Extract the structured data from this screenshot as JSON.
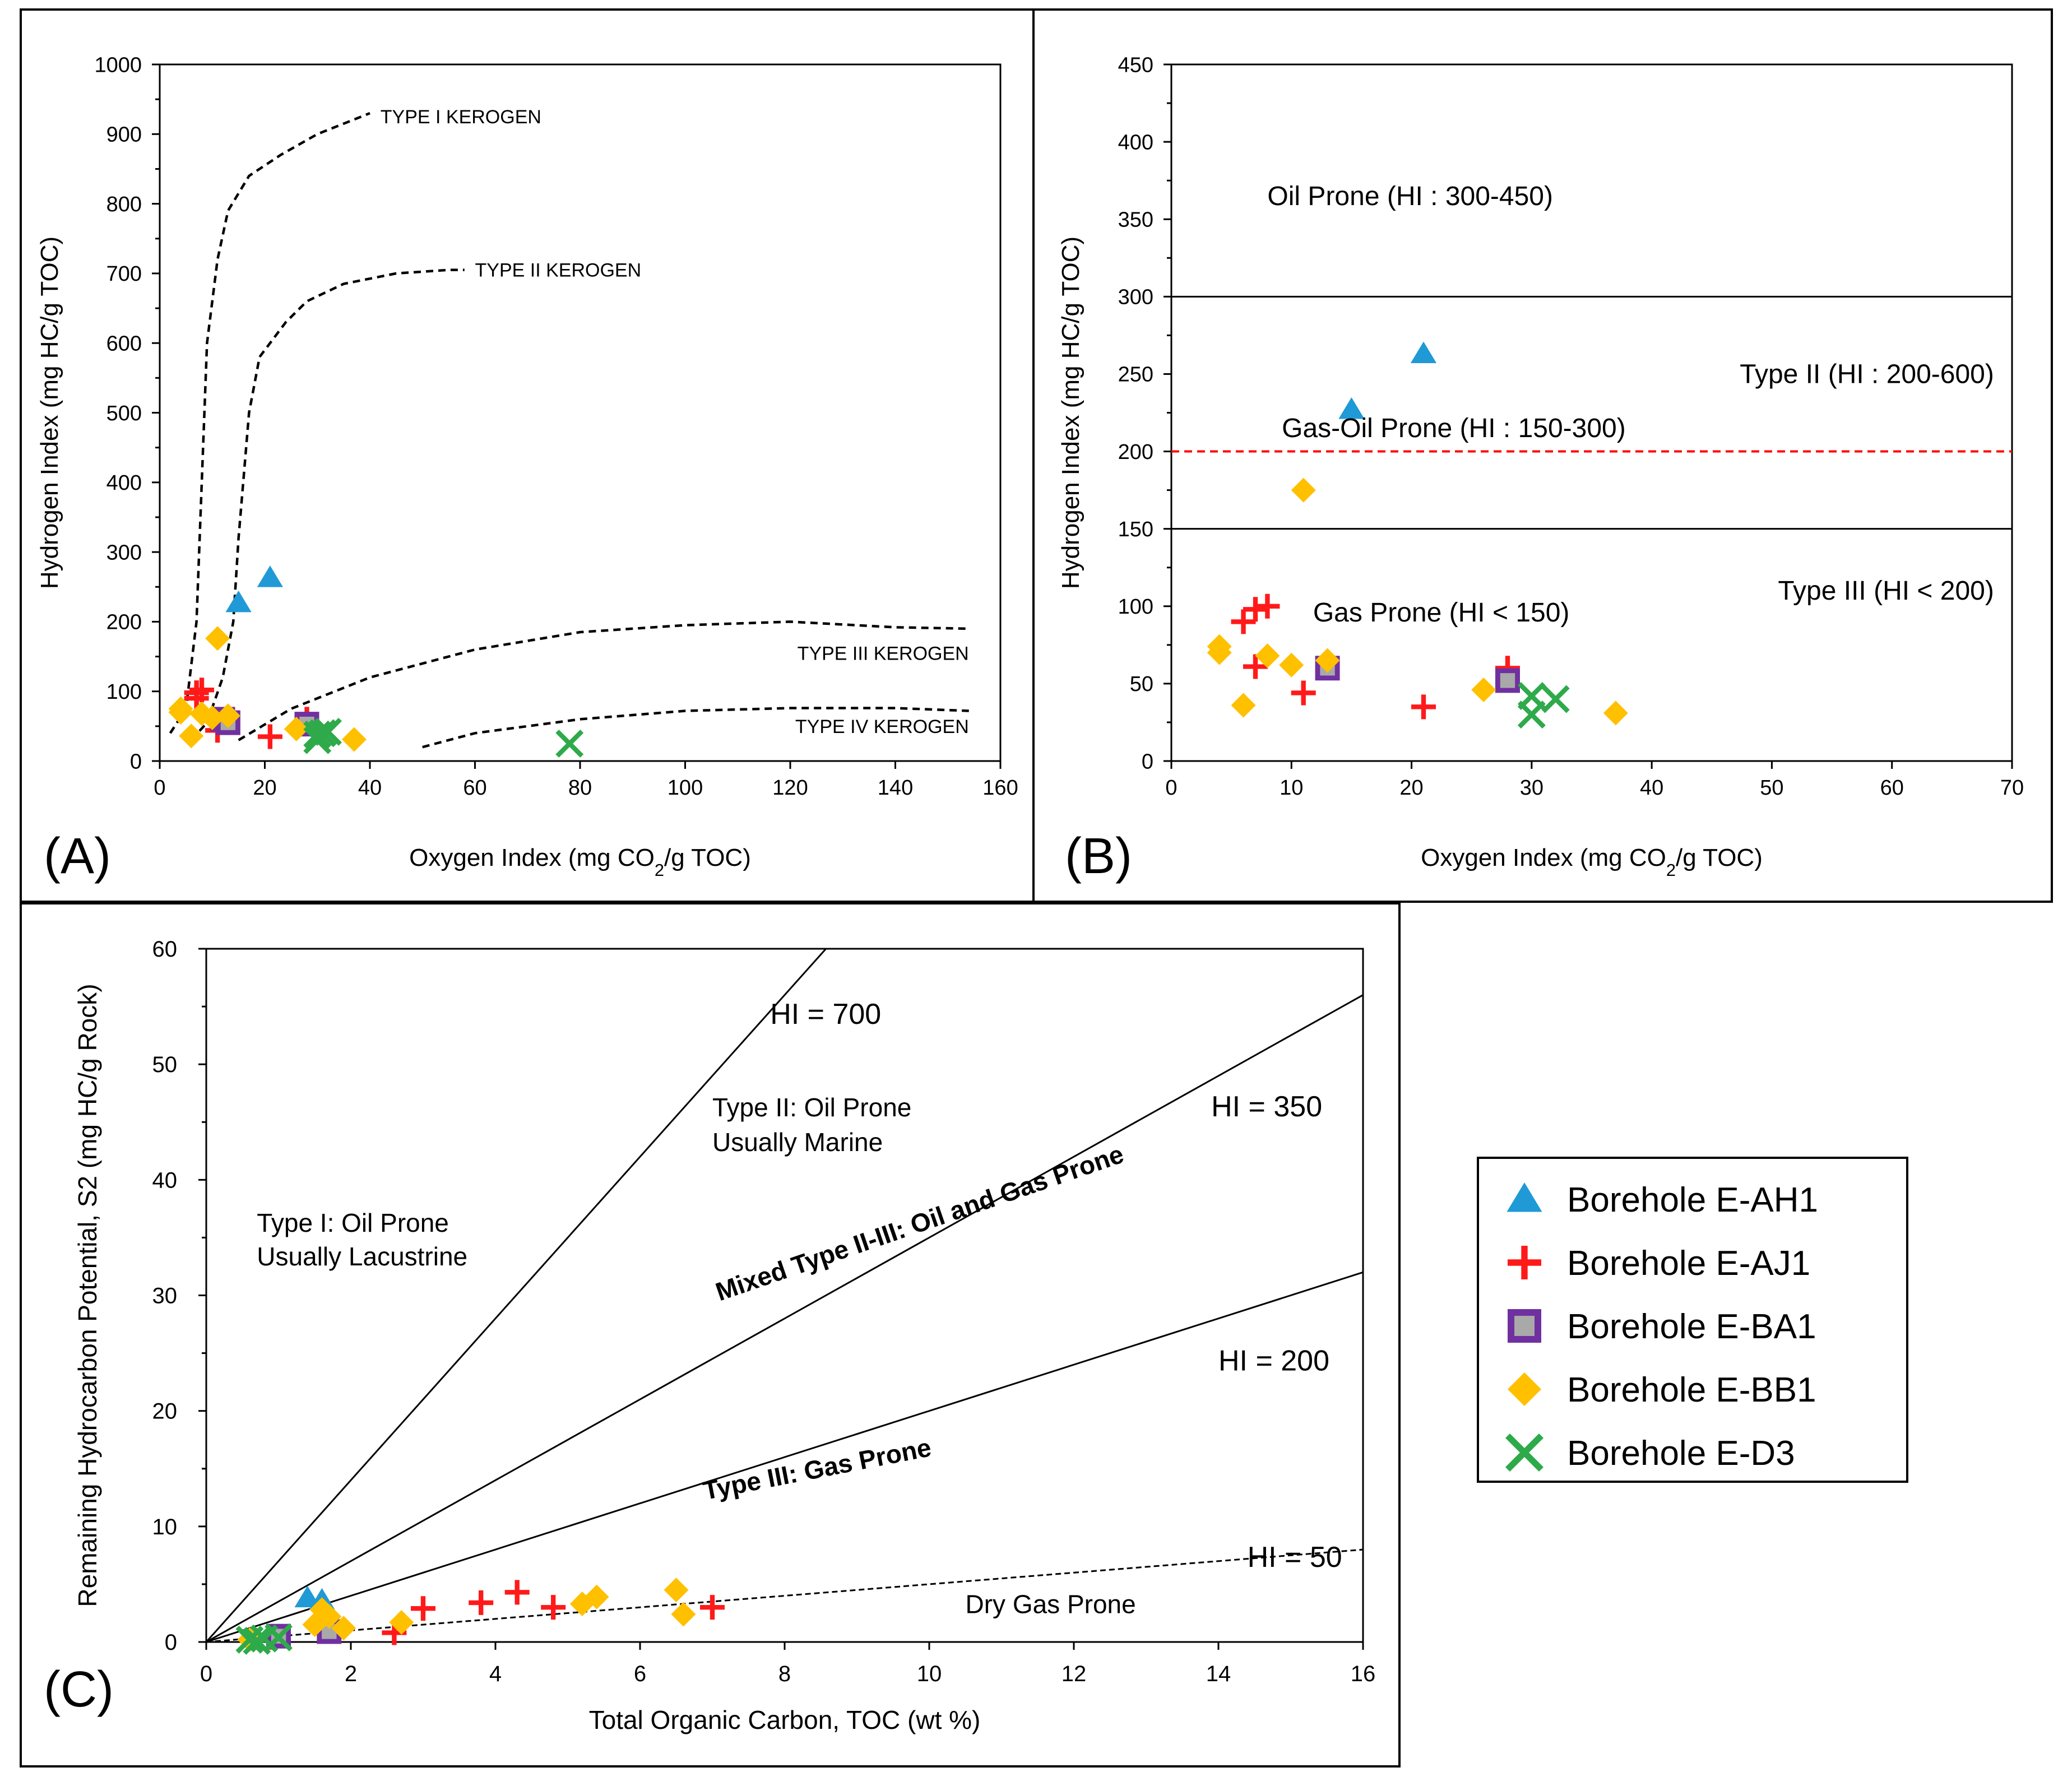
{
  "colors": {
    "E-AH1": "#1f9ad6",
    "E-AJ1": "#ff1a1a",
    "E-BA1_fill": "#a9a9a9",
    "E-BA1_stroke": "#7030a0",
    "E-BB1": "#ffc000",
    "E-D3": "#2eaa4a",
    "type_limit_line": "#ff0000"
  },
  "legend": {
    "entries": [
      {
        "name": "Borehole E-AH1",
        "series": "E-AH1",
        "marker": "triangle"
      },
      {
        "name": "Borehole E-AJ1",
        "series": "E-AJ1",
        "marker": "plus"
      },
      {
        "name": "Borehole E-BA1",
        "series": "E-BA1",
        "marker": "square"
      },
      {
        "name": "Borehole E-BB1",
        "series": "E-BB1",
        "marker": "diamond"
      },
      {
        "name": "Borehole E-D3",
        "series": "E-D3",
        "marker": "x"
      }
    ]
  },
  "chart_data": [
    {
      "panel": "(A)",
      "type": "scatter",
      "xlabel": "Oxygen Index (mg CO",
      "xlabel_sub": "2",
      "xlabel_tail": "/g TOC)",
      "ylabel": "Hydrogen Index (mg HC/g TOC)",
      "xlim": [
        0,
        160
      ],
      "ylim": [
        0,
        1000
      ],
      "xticks": [
        0,
        20,
        40,
        60,
        80,
        100,
        120,
        140,
        160
      ],
      "yticks": [
        0,
        100,
        200,
        300,
        400,
        500,
        600,
        700,
        800,
        900,
        1000
      ],
      "curves": [
        {
          "label": "TYPE I KEROGEN",
          "label_at": [
            42,
            925
          ],
          "points": [
            [
              2,
              40
            ],
            [
              5,
              75
            ],
            [
              7,
              200
            ],
            [
              8,
              400
            ],
            [
              9,
              600
            ],
            [
              11,
              720
            ],
            [
              13,
              790
            ],
            [
              17,
              840
            ],
            [
              23,
              870
            ],
            [
              30,
              900
            ],
            [
              35,
              915
            ],
            [
              40,
              930
            ]
          ]
        },
        {
          "label": "TYPE II KEROGEN",
          "label_at": [
            60,
            705
          ],
          "points": [
            [
              6,
              30
            ],
            [
              9,
              55
            ],
            [
              12,
              120
            ],
            [
              14,
              200
            ],
            [
              15,
              320
            ],
            [
              17,
              500
            ],
            [
              19,
              580
            ],
            [
              24,
              630
            ],
            [
              28,
              660
            ],
            [
              35,
              685
            ],
            [
              45,
              700
            ],
            [
              55,
              705
            ],
            [
              58,
              705
            ]
          ]
        },
        {
          "label": "TYPE III KEROGEN",
          "label_at": [
            154,
            155
          ],
          "points": [
            [
              15,
              30
            ],
            [
              25,
              75
            ],
            [
              40,
              120
            ],
            [
              60,
              160
            ],
            [
              80,
              185
            ],
            [
              100,
              195
            ],
            [
              120,
              200
            ],
            [
              140,
              192
            ],
            [
              154,
              190
            ]
          ]
        },
        {
          "label": "TYPE IV KEROGEN",
          "label_at": [
            154,
            50
          ],
          "points": [
            [
              50,
              20
            ],
            [
              60,
              40
            ],
            [
              80,
              60
            ],
            [
              100,
              72
            ],
            [
              120,
              76
            ],
            [
              140,
              76
            ],
            [
              154,
              72
            ]
          ]
        }
      ],
      "series": [
        {
          "name": "E-AH1",
          "marker": "triangle",
          "points": [
            [
              15,
              227
            ],
            [
              21,
              263
            ]
          ]
        },
        {
          "name": "E-AJ1",
          "marker": "plus",
          "points": [
            [
              7,
              98
            ],
            [
              8,
              102
            ],
            [
              7,
              90
            ],
            [
              11,
              44
            ],
            [
              21,
              35
            ],
            [
              28,
              60
            ]
          ]
        },
        {
          "name": "E-BA1",
          "marker": "square",
          "points": [
            [
              12,
              60
            ],
            [
              13,
              55
            ],
            [
              28,
              53
            ]
          ]
        },
        {
          "name": "E-BB1",
          "marker": "diamond",
          "points": [
            [
              4,
              75
            ],
            [
              4,
              70
            ],
            [
              6,
              36
            ],
            [
              8,
              68
            ],
            [
              10,
              62
            ],
            [
              11,
              176
            ],
            [
              13,
              65
            ],
            [
              26,
              46
            ],
            [
              37,
              31
            ]
          ]
        },
        {
          "name": "E-D3",
          "marker": "x",
          "points": [
            [
              30,
              38
            ],
            [
              31,
              40
            ],
            [
              32,
              42
            ],
            [
              30,
              30
            ],
            [
              78,
              25
            ]
          ]
        }
      ]
    },
    {
      "panel": "(B)",
      "type": "scatter",
      "xlabel": "Oxygen Index (mg CO",
      "xlabel_sub": "2",
      "xlabel_tail": "/g TOC)",
      "ylabel": "Hydrogen Index (mg HC/g TOC)",
      "xlim": [
        0,
        70
      ],
      "ylim": [
        0,
        450
      ],
      "xticks": [
        0,
        10,
        20,
        30,
        40,
        50,
        60,
        70
      ],
      "yticks": [
        0,
        50,
        100,
        150,
        200,
        250,
        300,
        350,
        400,
        450
      ],
      "hlines": [
        {
          "y": 300,
          "style": "solid"
        },
        {
          "y": 150,
          "style": "solid"
        },
        {
          "y": 200,
          "style": "dashed-red"
        }
      ],
      "zone_labels": [
        {
          "text": "Oil Prone (HI : 300-450)",
          "at": [
            8,
            365
          ],
          "color": "black"
        },
        {
          "text": "Gas-Oil Prone (HI : 150-300)",
          "at": [
            9.2,
            215
          ],
          "color": "black"
        },
        {
          "text": "Gas Prone (HI < 150)",
          "at": [
            11.8,
            96
          ],
          "color": "black"
        },
        {
          "text": "Type II (HI : 200-600)",
          "at": [
            68.5,
            250
          ],
          "color": "red"
        },
        {
          "text": "Type III (HI < 200)",
          "at": [
            68.5,
            110
          ],
          "color": "red"
        }
      ],
      "series": [
        {
          "name": "E-AH1",
          "marker": "triangle",
          "points": [
            [
              15,
              227
            ],
            [
              21,
              263
            ]
          ]
        },
        {
          "name": "E-AJ1",
          "marker": "plus",
          "points": [
            [
              6,
              90
            ],
            [
              7,
              98
            ],
            [
              8,
              100
            ],
            [
              7,
              61
            ],
            [
              11,
              44
            ],
            [
              21,
              35
            ],
            [
              28,
              60
            ]
          ]
        },
        {
          "name": "E-BA1",
          "marker": "square",
          "points": [
            [
              13,
              60
            ],
            [
              28,
              52
            ]
          ]
        },
        {
          "name": "E-BB1",
          "marker": "diamond",
          "points": [
            [
              4,
              74
            ],
            [
              4,
              70
            ],
            [
              6,
              36
            ],
            [
              8,
              68
            ],
            [
              10,
              62
            ],
            [
              11,
              175
            ],
            [
              13,
              65
            ],
            [
              26,
              46
            ],
            [
              37,
              31
            ]
          ]
        },
        {
          "name": "E-D3",
          "marker": "x",
          "points": [
            [
              30,
              42
            ],
            [
              30,
              30
            ],
            [
              32,
              40
            ]
          ]
        }
      ]
    },
    {
      "panel": "(C)",
      "type": "scatter",
      "xlabel": "Total Organic Carbon, TOC (wt %)",
      "ylabel": "Remaining Hydrocarbon Potential, S2 (mg HC/g Rock)",
      "xlim": [
        0,
        16
      ],
      "ylim": [
        0,
        60
      ],
      "xticks": [
        0,
        2,
        4,
        6,
        8,
        10,
        12,
        14,
        16
      ],
      "yticks": [
        0,
        10,
        20,
        30,
        40,
        50,
        60
      ],
      "hi_lines": [
        {
          "hi": 700,
          "label": "HI = 700",
          "label_at": [
            7.8,
            53.5
          ],
          "style": "solid"
        },
        {
          "hi": 350,
          "label": "HI = 350",
          "label_at": [
            13.9,
            45.5
          ],
          "style": "solid"
        },
        {
          "hi": 200,
          "label": "HI = 200",
          "label_at": [
            14.0,
            23.5
          ],
          "style": "solid"
        },
        {
          "hi": 50,
          "label": "HI = 50",
          "label_at": [
            14.4,
            6.5
          ],
          "style": "dashed"
        }
      ],
      "zone_labels": [
        {
          "text": "Type I: Oil Prone",
          "at": [
            0.7,
            35.5
          ]
        },
        {
          "text": "Usually Lacustrine",
          "at": [
            0.7,
            32.6
          ]
        },
        {
          "text": "Type II: Oil Prone",
          "at": [
            7.0,
            45.5
          ]
        },
        {
          "text": "Usually Marine",
          "at": [
            7.0,
            42.5
          ]
        },
        {
          "text": "Mixed Type II-III: Oil and Gas Prone",
          "at": [
            7.1,
            29.5
          ],
          "rotate": -19
        },
        {
          "text": "Type III: Gas Prone",
          "at": [
            6.9,
            12.3
          ],
          "rotate": -11
        },
        {
          "text": "Dry Gas Prone",
          "at": [
            10.5,
            2.5
          ]
        }
      ],
      "series": [
        {
          "name": "E-AH1",
          "marker": "triangle",
          "points": [
            [
              1.4,
              3.8
            ],
            [
              1.6,
              3.6
            ]
          ]
        },
        {
          "name": "E-AJ1",
          "marker": "plus",
          "points": [
            [
              2.6,
              0.8
            ],
            [
              3.0,
              2.9
            ],
            [
              3.8,
              3.4
            ],
            [
              4.3,
              4.3
            ],
            [
              4.8,
              3.0
            ],
            [
              7.0,
              3.0
            ],
            [
              0.9,
              0.4
            ]
          ]
        },
        {
          "name": "E-BA1",
          "marker": "square",
          "points": [
            [
              1.0,
              0.5
            ],
            [
              1.7,
              0.9
            ]
          ]
        },
        {
          "name": "E-BB1",
          "marker": "diamond",
          "points": [
            [
              0.6,
              0.2
            ],
            [
              1.5,
              1.5
            ],
            [
              1.6,
              2.8
            ],
            [
              1.9,
              1.2
            ],
            [
              2.7,
              1.7
            ],
            [
              5.2,
              3.3
            ],
            [
              5.4,
              3.9
            ],
            [
              6.5,
              4.5
            ],
            [
              6.6,
              2.4
            ],
            [
              1.7,
              2.2
            ]
          ]
        },
        {
          "name": "E-D3",
          "marker": "x",
          "points": [
            [
              0.6,
              0.2
            ],
            [
              0.8,
              0.3
            ],
            [
              1.0,
              0.4
            ],
            [
              0.7,
              0.1
            ]
          ]
        }
      ]
    }
  ],
  "panel_letters": {
    "a": "(A)",
    "b": "(B)",
    "c": "(C)"
  }
}
